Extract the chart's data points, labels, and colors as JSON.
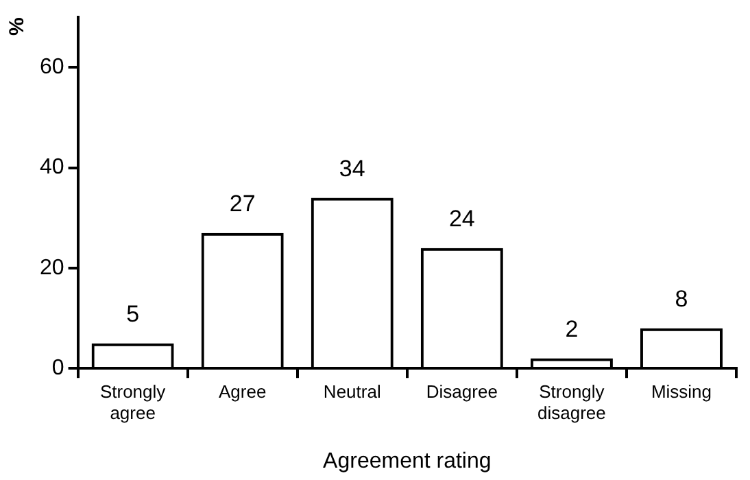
{
  "chart_data": {
    "type": "bar",
    "categories": [
      "Strongly agree",
      "Agree",
      "Neutral",
      "Disagree",
      "Strongly disagree",
      "Missing"
    ],
    "values": [
      5,
      27,
      34,
      24,
      2,
      8
    ],
    "color": "#000000",
    "xlabel": "Agreement rating",
    "ylabel": "%",
    "ylim": [
      0,
      70
    ],
    "yticks": [
      0,
      20,
      40,
      60
    ],
    "grid": false,
    "legend": false,
    "data_labels": true
  }
}
